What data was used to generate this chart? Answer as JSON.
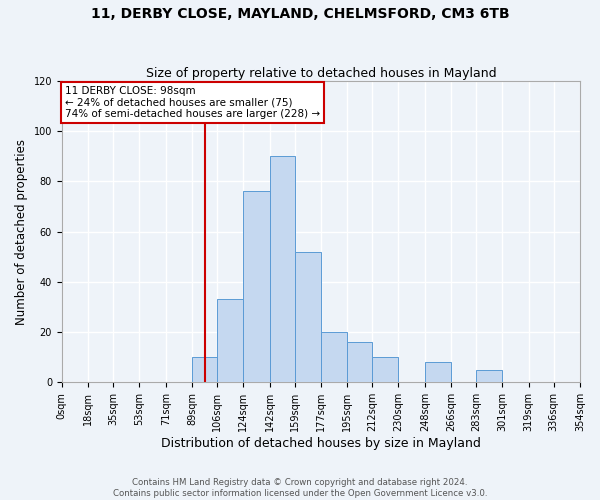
{
  "title": "11, DERBY CLOSE, MAYLAND, CHELMSFORD, CM3 6TB",
  "subtitle": "Size of property relative to detached houses in Mayland",
  "xlabel": "Distribution of detached houses by size in Mayland",
  "ylabel": "Number of detached properties",
  "bin_edges": [
    0,
    18,
    35,
    53,
    71,
    89,
    106,
    124,
    142,
    159,
    177,
    195,
    212,
    230,
    248,
    266,
    283,
    301,
    319,
    336,
    354
  ],
  "bar_heights": [
    0,
    0,
    0,
    0,
    0,
    10,
    33,
    76,
    90,
    52,
    20,
    16,
    10,
    0,
    8,
    0,
    5,
    0,
    0,
    0
  ],
  "bar_color": "#c5d8f0",
  "bar_edge_color": "#5b9bd5",
  "property_size": 98,
  "vline_color": "#cc0000",
  "annotation_text": "11 DERBY CLOSE: 98sqm\n← 24% of detached houses are smaller (75)\n74% of semi-detached houses are larger (228) →",
  "annotation_box_color": "white",
  "annotation_box_edge": "#cc0000",
  "ylim": [
    0,
    120
  ],
  "yticks": [
    0,
    20,
    40,
    60,
    80,
    100,
    120
  ],
  "footer_line1": "Contains HM Land Registry data © Crown copyright and database right 2024.",
  "footer_line2": "Contains public sector information licensed under the Open Government Licence v3.0.",
  "bg_color": "#eef3f9",
  "plot_bg_color": "#eef3f9",
  "grid_color": "white",
  "title_fontsize": 10,
  "subtitle_fontsize": 9,
  "tick_fontsize": 7,
  "ylabel_fontsize": 8.5,
  "xlabel_fontsize": 9
}
